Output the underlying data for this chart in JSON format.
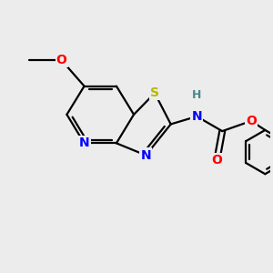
{
  "bg_color": "#ececec",
  "bond_color": "#000000",
  "bond_width": 1.6,
  "atom_labels": {
    "S": {
      "color": "#b8b800",
      "fontsize": 10
    },
    "N": {
      "color": "#0000ff",
      "fontsize": 10
    },
    "O": {
      "color": "#ff0000",
      "fontsize": 10
    },
    "H": {
      "color": "#4a8888",
      "fontsize": 9
    }
  },
  "figsize": [
    3.0,
    3.0
  ],
  "dpi": 100,
  "xlim": [
    0,
    10
  ],
  "ylim": [
    0,
    10
  ]
}
